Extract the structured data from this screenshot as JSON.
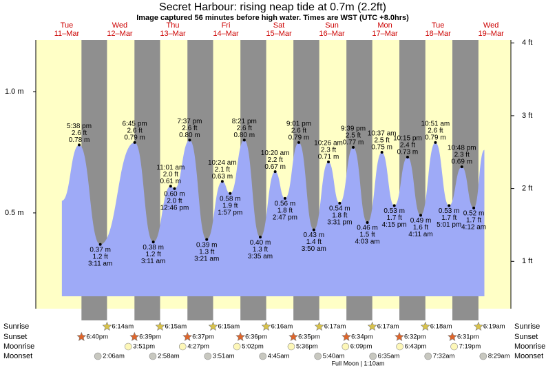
{
  "chart_data": {
    "type": "tide",
    "title": "Secret Harbour: rising  neap tide at 0.7m (2.2ft)",
    "subtitle": "Image captured 56 minutes before high water. Times are WST (UTC +8.0hrs)",
    "days": [
      "Tue",
      "Wed",
      "Thu",
      "Fri",
      "Sat",
      "Sun",
      "Mon",
      "Tue",
      "Wed"
    ],
    "dates": [
      "11–Mar",
      "12–Mar",
      "13–Mar",
      "14–Mar",
      "15–Mar",
      "16–Mar",
      "17–Mar",
      "18–Mar",
      "19–Mar"
    ],
    "x": [
      9.8,
      17.63,
      27.18,
      42.75,
      51.18,
      59.02,
      60.77,
      67.62,
      75.35,
      82.4,
      85.95,
      92.35,
      99.58,
      106.33,
      110.78,
      117.02,
      123.83,
      130.43,
      135.52,
      141.65,
      148.05,
      154.62,
      160.25,
      166.25,
      172.18,
      178.85,
      185.02,
      190.8,
      196.2,
      201
    ],
    "values": [
      0.55,
      0.78,
      0.37,
      0.79,
      0.38,
      0.61,
      0.6,
      0.8,
      0.39,
      0.63,
      0.58,
      0.8,
      0.4,
      0.67,
      0.56,
      0.79,
      0.43,
      0.71,
      0.54,
      0.77,
      0.46,
      0.75,
      0.53,
      0.73,
      0.49,
      0.79,
      0.53,
      0.69,
      0.52,
      0.76
    ],
    "value_labels": [
      null,
      "0.78 m",
      "0.37 m",
      "0.79 m",
      "0.38 m",
      "0.61 m",
      "0.60 m",
      "0.80 m",
      "0.39 m",
      "0.63 m",
      "0.58 m",
      "0.80 m",
      "0.40 m",
      "0.67 m",
      "0.56 m",
      "0.79 m",
      "0.43 m",
      "0.71 m",
      "0.54 m",
      "0.77 m",
      "0.46 m",
      "0.75 m",
      "0.53 m",
      "0.73 m",
      "0.49 m",
      "0.79 m",
      "0.53 m",
      "0.69 m",
      "0.52 m",
      null
    ],
    "feet_labels": [
      null,
      "2.6 ft",
      "1.2 ft",
      "2.6 ft",
      "1.2 ft",
      "2.0 ft",
      "2.0 ft",
      "2.6 ft",
      "1.3 ft",
      "2.1 ft",
      "1.9 ft",
      "2.6 ft",
      "1.3 ft",
      "2.2 ft",
      "1.8 ft",
      "2.6 ft",
      "1.4 ft",
      "2.3 ft",
      "1.8 ft",
      "2.5 ft",
      "1.5 ft",
      "2.5 ft",
      "1.7 ft",
      "2.4 ft",
      "1.6 ft",
      "2.6 ft",
      "1.7 ft",
      "2.3 ft",
      "1.7 ft",
      null
    ],
    "time_labels": [
      null,
      "5:38 pm",
      "3:11 am",
      "6:45 pm",
      "3:11 am",
      "11:01 am",
      "12:46 pm",
      "7:37 pm",
      "3:21 am",
      "10:24 am",
      "1:57 pm",
      "8:21 pm",
      "3:35 am",
      "10:20 am",
      "2:47 pm",
      "9:01 pm",
      "3:50 am",
      "10:26 am",
      "3:31 pm",
      "9:39 pm",
      "4:03 am",
      "10:37 am",
      "4:15 pm",
      "10:15 pm",
      "4:11 am",
      "10:51 am",
      "5:01 pm",
      "10:48 pm",
      "4:12 am",
      null
    ],
    "color": "#9eaaf7",
    "xlim": [
      -2,
      213
    ],
    "ylim": [
      0.105,
      1.213
    ],
    "yticks": [
      {
        "value": 0.5,
        "label": "0.5 m"
      },
      {
        "value": 1.0,
        "label": "1.0 m"
      }
    ],
    "y2lim": [
      0.35,
      4.04
    ],
    "y2ticks": [
      {
        "value": 1,
        "label": "1 ft"
      },
      {
        "value": 2,
        "label": "2 ft"
      },
      {
        "value": 3,
        "label": "3 ft"
      },
      {
        "value": 4,
        "label": "4 ft"
      }
    ],
    "sunrise": {
      "label": "Sunrise",
      "x": [
        30.23,
        54.25,
        78.25,
        102.27,
        126.28,
        150.28,
        174.3,
        198.32
      ],
      "times": [
        "6:14am",
        "6:15am",
        "6:15am",
        "6:16am",
        "6:17am",
        "6:17am",
        "6:18am",
        "6:19am"
      ]
    },
    "sunset": {
      "label": "Sunset",
      "x": [
        18.67,
        42.65,
        66.62,
        90.6,
        114.58,
        138.57,
        162.53,
        186.52
      ],
      "times": [
        "6:40pm",
        "6:39pm",
        "6:37pm",
        "6:36pm",
        "6:35pm",
        "6:34pm",
        "6:32pm",
        "6:31pm"
      ]
    },
    "moonrise": {
      "label": "Moonrise",
      "x": [
        39.85,
        64.45,
        89.03,
        113.6,
        138.15,
        162.72,
        187.32
      ],
      "times": [
        "3:51pm",
        "4:27pm",
        "5:02pm",
        "5:36pm",
        "6:09pm",
        "6:43pm",
        "7:19pm"
      ]
    },
    "moonset": {
      "label": "Moonset",
      "x": [
        26.1,
        50.97,
        75.85,
        100.75,
        125.67,
        150.58,
        175.53,
        200.48
      ],
      "times": [
        "2:06am",
        "2:58am",
        "3:51am",
        "4:45am",
        "5:40am",
        "6:35am",
        "7:32am",
        "8:29am"
      ]
    },
    "moon_phase": "Full Moon | 1:10am"
  }
}
